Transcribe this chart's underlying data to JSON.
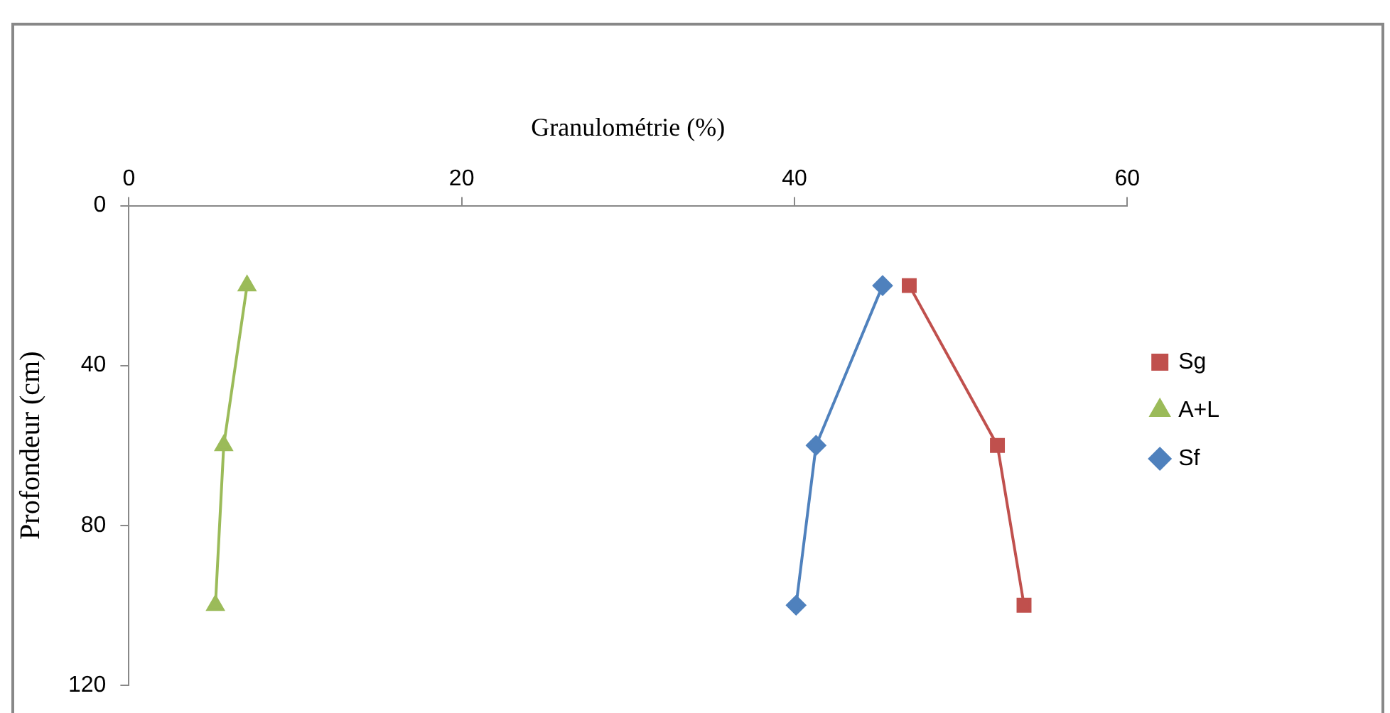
{
  "chart_data": {
    "type": "line",
    "xlabel": "Granulométrie (%)",
    "ylabel": "Profondeur (cm)",
    "xlim": [
      0,
      60
    ],
    "xticks": [
      0,
      20,
      40,
      60
    ],
    "ylim": [
      120,
      0
    ],
    "yticks": [
      0,
      40,
      80,
      120
    ],
    "grid": false,
    "legend": "right",
    "line_style": "solid",
    "series": [
      {
        "name": "Sg",
        "color": "#c0504d",
        "marker": "square",
        "x": [
          46.9,
          52.2,
          53.8
        ],
        "values": [
          20,
          60,
          100
        ]
      },
      {
        "name": "A+L",
        "color": "#9bbb59",
        "marker": "triangle",
        "x": [
          7.1,
          5.7,
          5.2
        ],
        "values": [
          20,
          60,
          100
        ]
      },
      {
        "name": "Sf",
        "color": "#4f81bd",
        "marker": "diamond",
        "x": [
          45.3,
          41.3,
          40.1
        ],
        "values": [
          20,
          60,
          100
        ]
      }
    ]
  }
}
